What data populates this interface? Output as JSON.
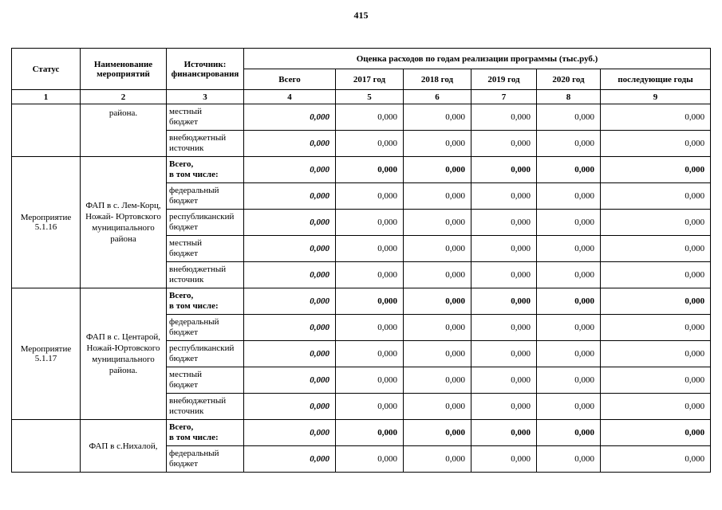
{
  "page_number": "415",
  "table": {
    "headers": {
      "status": "Статус",
      "name": "Наименование\nмероприятий",
      "source": "Источник:\nфинансирования",
      "costs": "Оценка расходов по годам реализации  программы (тыс.руб.)",
      "year_cols": [
        "Всего",
        "2017 год",
        "2018 год",
        "2019 год",
        "2020 год",
        "последующие годы"
      ],
      "col_numbers": [
        "1",
        "2",
        "3",
        "4",
        "5",
        "6",
        "7",
        "8",
        "9"
      ]
    },
    "groups": [
      {
        "status": "",
        "name": "района.",
        "name_align": "top",
        "rows": [
          {
            "source": "местный\nбюджет",
            "bold": false,
            "values": [
              "0,000",
              "0,000",
              "0,000",
              "0,000",
              "0,000",
              "0,000"
            ]
          },
          {
            "source": "внебюджетный\nисточник",
            "bold": false,
            "values": [
              "0,000",
              "0,000",
              "0,000",
              "0,000",
              "0,000",
              "0,000"
            ]
          }
        ]
      },
      {
        "status": "Мероприятие\n5.1.16",
        "name": "ФАП в с. Лем-Корц,\nНожай- Юртовского\nмуниципального\nрайона",
        "name_align": "middle",
        "rows": [
          {
            "source": "Всего,\nв том числе:",
            "bold": true,
            "values": [
              "0,000",
              "0,000",
              "0,000",
              "0,000",
              "0,000",
              "0,000"
            ]
          },
          {
            "source": "федеральный\nбюджет",
            "bold": false,
            "values": [
              "0,000",
              "0,000",
              "0,000",
              "0,000",
              "0,000",
              "0,000"
            ]
          },
          {
            "source": "республиканский\nбюджет",
            "bold": false,
            "values": [
              "0,000",
              "0,000",
              "0,000",
              "0,000",
              "0,000",
              "0,000"
            ]
          },
          {
            "source": "местный\nбюджет",
            "bold": false,
            "values": [
              "0,000",
              "0,000",
              "0,000",
              "0,000",
              "0,000",
              "0,000"
            ]
          },
          {
            "source": "внебюджетный\nисточник",
            "bold": false,
            "values": [
              "0,000",
              "0,000",
              "0,000",
              "0,000",
              "0,000",
              "0,000"
            ]
          }
        ]
      },
      {
        "status": "Мероприятие\n5.1.17",
        "name": "ФАП в с. Центарой,\nНожай-Юртовского\nмуниципального\nрайона.",
        "name_align": "middle",
        "rows": [
          {
            "source": "Всего,\nв том числе:",
            "bold": true,
            "values": [
              "0,000",
              "0,000",
              "0,000",
              "0,000",
              "0,000",
              "0,000"
            ]
          },
          {
            "source": "федеральный\nбюджет",
            "bold": false,
            "values": [
              "0,000",
              "0,000",
              "0,000",
              "0,000",
              "0,000",
              "0,000"
            ]
          },
          {
            "source": "республиканский\nбюджет",
            "bold": false,
            "values": [
              "0,000",
              "0,000",
              "0,000",
              "0,000",
              "0,000",
              "0,000"
            ]
          },
          {
            "source": "местный\nбюджет",
            "bold": false,
            "values": [
              "0,000",
              "0,000",
              "0,000",
              "0,000",
              "0,000",
              "0,000"
            ]
          },
          {
            "source": "внебюджетный\nисточник",
            "bold": false,
            "values": [
              "0,000",
              "0,000",
              "0,000",
              "0,000",
              "0,000",
              "0,000"
            ]
          }
        ]
      },
      {
        "status": "",
        "name": "ФАП в с.Нихалой,",
        "name_align": "middle",
        "rows": [
          {
            "source": "Всего,\nв том числе:",
            "bold": true,
            "values": [
              "0,000",
              "0,000",
              "0,000",
              "0,000",
              "0,000",
              "0,000"
            ]
          },
          {
            "source": "федеральный\nбюджет",
            "bold": false,
            "values": [
              "0,000",
              "0,000",
              "0,000",
              "0,000",
              "0,000",
              "0,000"
            ]
          }
        ]
      }
    ]
  }
}
